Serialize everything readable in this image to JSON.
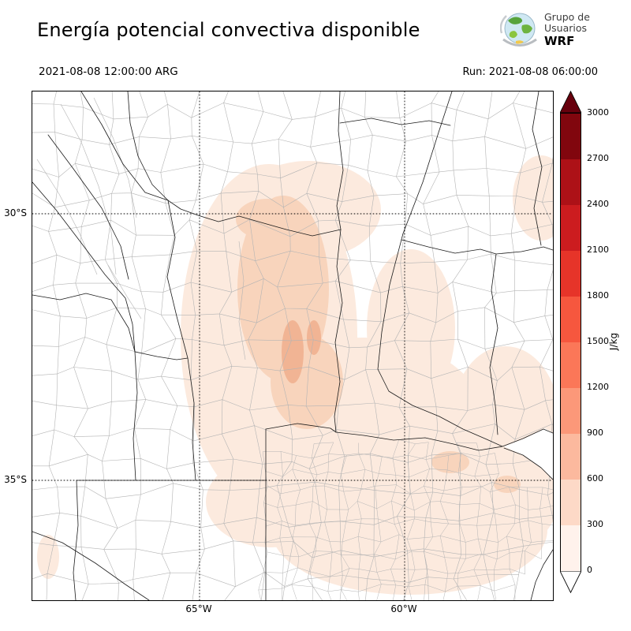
{
  "header": {
    "title": "Energía potencial convectiva disponible",
    "logo": {
      "line1": "Grupo de",
      "line2": "Usuarios",
      "line3": "WRF"
    }
  },
  "subheader": {
    "valid_time": "2021-08-08 12:00:00 ARG",
    "run": "Run: 2021-08-08 06:00:00"
  },
  "map": {
    "lat_ticks": [
      "30°S",
      "35°S"
    ],
    "lon_ticks": [
      "65°W",
      "60°W"
    ],
    "cape_fill": {
      "level_0_300": "#fceade",
      "level_300_600": "#f8d4bc",
      "level_600_900": "#f1b494"
    },
    "line_colors": {
      "province": "#1a1a1a",
      "department": "#b4b4b4"
    }
  },
  "colorbar": {
    "unit": "J/kg",
    "ticks": [
      "3000",
      "2700",
      "2400",
      "2100",
      "1800",
      "1500",
      "1200",
      "900",
      "600",
      "300",
      "0"
    ],
    "over_color": "#67000d",
    "under_color": "#ffffff",
    "bands_top_to_bottom": [
      "#81060e",
      "#ad1117",
      "#cc1c1f",
      "#e63429",
      "#f6573e",
      "#fb7758",
      "#fc9879",
      "#fcb99e",
      "#fdd9c7",
      "#fff2ec"
    ]
  }
}
